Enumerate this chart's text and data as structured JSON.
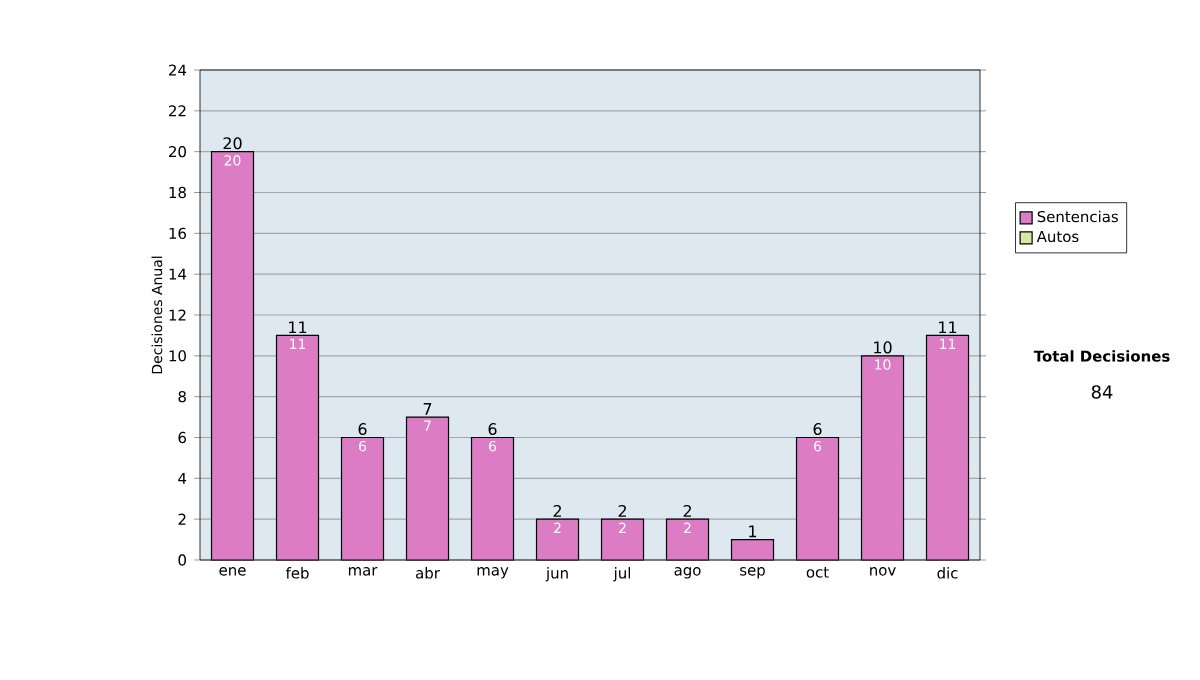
{
  "chart_data": {
    "type": "bar",
    "stacked": true,
    "ylabel": "Decisiones Anual",
    "categories": [
      "ene",
      "feb",
      "mar",
      "abr",
      "may",
      "jun",
      "jul",
      "ago",
      "sep",
      "oct",
      "nov",
      "dic"
    ],
    "series": [
      {
        "name": "Sentencias",
        "color": "#dc7cc4",
        "values": [
          20,
          11,
          6,
          7,
          6,
          2,
          2,
          2,
          1,
          6,
          10,
          11
        ],
        "value_labels": [
          "20",
          "11",
          "6",
          "7",
          "6",
          "2",
          "2",
          "2",
          null,
          "6",
          "10",
          "11"
        ]
      },
      {
        "name": "Autos",
        "color": "#d6eba0",
        "values": [
          0,
          0,
          0,
          0,
          0,
          0,
          0,
          0,
          0,
          0,
          0,
          0
        ]
      }
    ],
    "totals": [
      "20",
      "11",
      "6",
      "7",
      "6",
      "2",
      "2",
      "2",
      "1",
      "6",
      "10",
      "11"
    ],
    "ylim": [
      0,
      24
    ],
    "yticks": [
      0,
      2,
      4,
      6,
      8,
      10,
      12,
      14,
      16,
      18,
      20,
      22,
      24
    ],
    "grid": "y",
    "legend": "right",
    "annotations": [
      "Total Decisiones",
      "84"
    ]
  }
}
